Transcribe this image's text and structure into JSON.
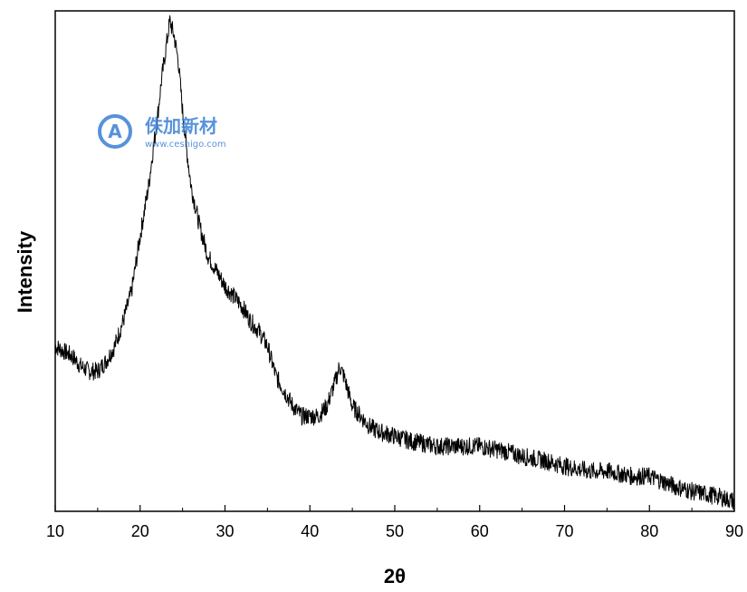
{
  "chart_data": {
    "type": "line",
    "title": "",
    "xlabel": "2θ",
    "ylabel": "Intensity",
    "xlim": [
      10,
      90
    ],
    "ylim": [
      0,
      100
    ],
    "y_tick_labels_shown": false,
    "x_ticks": [
      10,
      20,
      30,
      40,
      50,
      60,
      70,
      80,
      90
    ],
    "grid": false,
    "legend": "none",
    "line_color": "#000000",
    "series": [
      {
        "x": [
          10,
          11,
          12,
          13,
          14,
          15,
          16,
          17,
          18,
          19,
          20,
          21,
          21.5,
          22,
          22.5,
          23,
          23.5,
          24,
          24.5,
          25,
          25.5,
          26,
          27,
          28,
          29,
          30,
          31,
          32,
          33,
          34,
          35,
          36,
          37,
          38,
          39,
          40,
          41,
          42,
          43,
          43.5,
          44,
          45,
          46,
          47,
          48,
          50,
          52,
          55,
          58,
          60,
          63,
          65,
          68,
          70,
          73,
          75,
          78,
          80,
          83,
          85,
          88,
          90
        ],
        "y": [
          33,
          32,
          31,
          29,
          28,
          28,
          30,
          33,
          38,
          44,
          55,
          65,
          72,
          78,
          86,
          92,
          98,
          95,
          90,
          80,
          72,
          65,
          57,
          51,
          48,
          45,
          43,
          41,
          38,
          36,
          33,
          27,
          24,
          21,
          19,
          19,
          19,
          21,
          26,
          29,
          27,
          21,
          19,
          17,
          16,
          15,
          14,
          13,
          13,
          13,
          12,
          11,
          10,
          9,
          8,
          8,
          7,
          7,
          5,
          4,
          3,
          2
        ]
      }
    ]
  },
  "watermark": {
    "brand_text": "侏加新材",
    "url_text": "www.ceshigo.com",
    "logo_letter": "A",
    "color": "#3a7fd5"
  }
}
